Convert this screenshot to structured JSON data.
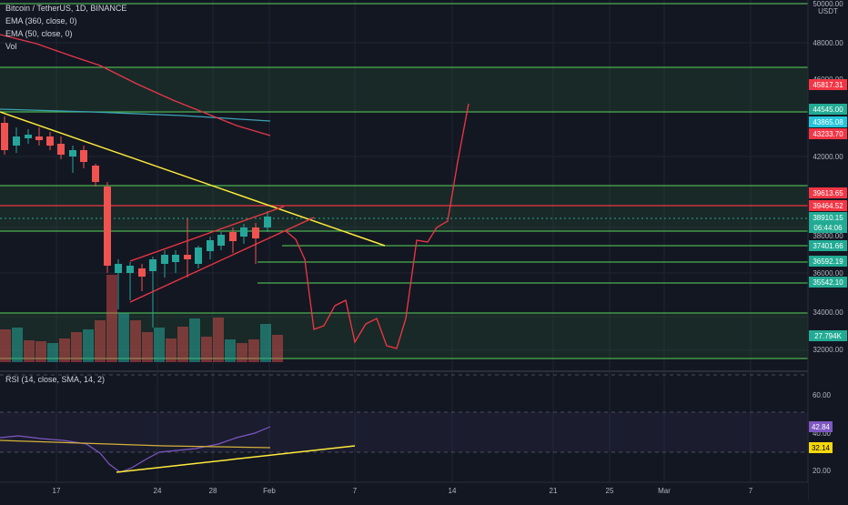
{
  "header": {
    "symbol_line": "Bitcoin / TetherUS, 1D, BINANCE",
    "indicators": [
      "EMA (360, close, 0)",
      "EMA (50, close, 0)",
      "Vol"
    ],
    "rsi_label": "RSI (14, close, SMA, 14, 2)"
  },
  "axis": {
    "currency": "USDT",
    "price_ticks": [
      "50000.00",
      "48000.00",
      "46000.00",
      "42000.00",
      "38000.00",
      "36000.00",
      "34000.00",
      "32000.00"
    ],
    "rsi_ticks": [
      "60.00",
      "40.00",
      "20.00"
    ],
    "date_ticks": [
      "17",
      "24",
      "28",
      "Feb",
      "7",
      "14",
      "21",
      "25",
      "Mar",
      "7"
    ]
  },
  "price_labels": [
    {
      "text": "45817.31",
      "color": "#f23645"
    },
    {
      "text": "44545.00",
      "color": "#22ab94"
    },
    {
      "text": "43865.08",
      "color": "#26c6da"
    },
    {
      "text": "43233.70",
      "color": "#f23645"
    },
    {
      "text": "39613.65",
      "color": "#f23645"
    },
    {
      "text": "39464.52",
      "color": "#f23645"
    },
    {
      "text": "38910.15",
      "color": "#22ab94"
    },
    {
      "text": "06:44:06",
      "color": "#22ab94"
    },
    {
      "text": "37401.66",
      "color": "#22ab94"
    },
    {
      "text": "36592.19",
      "color": "#22ab94"
    },
    {
      "text": "35542.10",
      "color": "#22ab94"
    },
    {
      "text": "27.794K",
      "color": "#22ab94"
    }
  ],
  "rsi_labels": [
    {
      "text": "42.84",
      "color": "#7e57c2"
    },
    {
      "text": "32.14",
      "color": "#f5d90a"
    }
  ],
  "colors": {
    "background": "#131722",
    "up": "#26a69a",
    "down": "#ef5350",
    "zone_green": "#4caf50",
    "ema50": "#e5374b",
    "ema360": "#3aa3b4",
    "trend_yellow": "#ffeb3b",
    "rsi_line": "#7e57c2",
    "rsi_ma": "#d4b13a"
  }
}
